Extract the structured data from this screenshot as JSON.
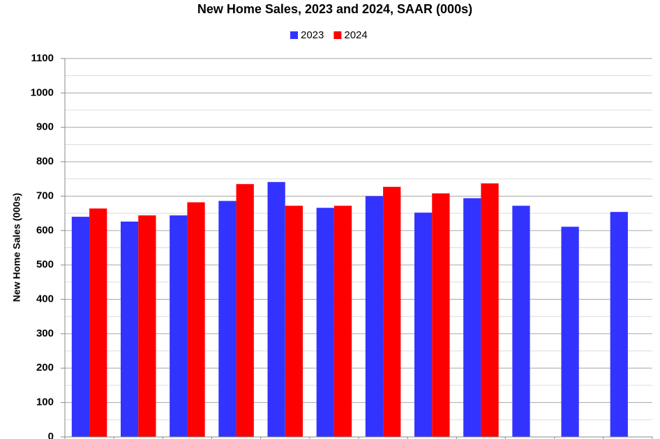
{
  "chart_data": {
    "type": "bar",
    "title": "New Home Sales,  2023 and 2024, SAAR (000s)",
    "y_label": "New Home Sales (000s)",
    "categories": [
      null,
      null,
      null,
      null,
      null,
      null,
      null,
      null,
      null,
      null,
      null,
      null
    ],
    "series": [
      {
        "name": "2023",
        "color": "#3333ff",
        "values": [
          640,
          626,
          644,
          686,
          741,
          666,
          700,
          652,
          694,
          672,
          611,
          654
        ]
      },
      {
        "name": "2024",
        "color": "#ff0000",
        "values": [
          664,
          644,
          682,
          735,
          672,
          672,
          727,
          708,
          737,
          null,
          null,
          null
        ]
      }
    ],
    "ylim": [
      0,
      1100
    ],
    "yticks": [
      0,
      100,
      200,
      300,
      400,
      500,
      600,
      700,
      800,
      900,
      1000,
      1100
    ],
    "grid": true,
    "legend": "top"
  }
}
